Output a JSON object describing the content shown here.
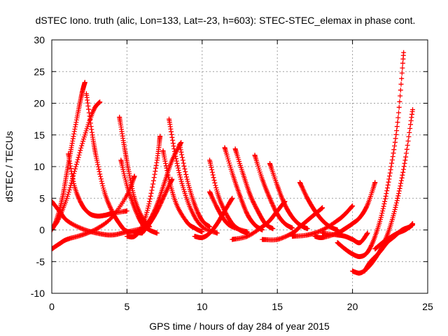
{
  "chart_data": {
    "type": "scatter",
    "title": "dSTEC Iono. truth (alic, Lon=133, Lat=-23, h=603): STEC-STEC_elemax in phase cont.",
    "xlabel": "GPS time / hours of day 284 of year 2015",
    "ylabel": "dSTEC  / TECUs",
    "xlim": [
      0,
      25
    ],
    "ylim": [
      -10,
      30
    ],
    "xticks": [
      0,
      5,
      10,
      15,
      20,
      25
    ],
    "yticks": [
      -10,
      -5,
      0,
      5,
      10,
      15,
      20,
      25,
      30
    ],
    "grid": true,
    "legend": "none",
    "marker": "plus",
    "color": "#ff0000",
    "series": [
      {
        "x": [
          0.0,
          0.3,
          0.7,
          1.0,
          1.3,
          1.7,
          2.0,
          2.2
        ],
        "y": [
          0.0,
          1.5,
          5.0,
          9.0,
          13.0,
          18.0,
          21.5,
          23.3
        ]
      },
      {
        "x": [
          0.0,
          0.4,
          1.0,
          1.6,
          2.2,
          2.8,
          3.2
        ],
        "y": [
          0.3,
          1.5,
          5.0,
          10.0,
          15.0,
          19.0,
          20.2
        ]
      },
      {
        "x": [
          0.0,
          0.5,
          1.0,
          2.0,
          3.0,
          4.0,
          5.0,
          6.0
        ],
        "y": [
          4.5,
          3.0,
          1.5,
          0.2,
          -0.5,
          -0.8,
          -0.3,
          0.2
        ]
      },
      {
        "x": [
          0.0,
          0.5,
          1.0,
          2.0,
          3.0,
          4.0,
          5.0,
          5.5
        ],
        "y": [
          -3.0,
          -2.2,
          -1.5,
          -0.8,
          0.2,
          2.0,
          5.5,
          8.5
        ]
      },
      {
        "x": [
          1.1,
          1.5,
          2.0,
          2.5,
          3.0,
          3.5,
          4.0,
          5.0
        ],
        "y": [
          12.0,
          7.0,
          4.0,
          2.6,
          2.2,
          2.3,
          2.6,
          3.0
        ]
      },
      {
        "x": [
          2.3,
          2.7,
          3.0,
          3.5,
          4.0,
          4.5,
          5.0,
          6.0
        ],
        "y": [
          21.5,
          15.0,
          11.0,
          6.0,
          3.0,
          1.0,
          -0.2,
          -0.5
        ]
      },
      {
        "x": [
          4.5,
          4.8,
          5.1,
          5.5,
          6.0,
          6.5
        ],
        "y": [
          17.8,
          13.5,
          9.5,
          5.0,
          2.0,
          0.5
        ]
      },
      {
        "x": [
          4.6,
          5.0,
          5.5,
          6.0,
          6.5,
          7.0
        ],
        "y": [
          11.0,
          7.0,
          3.5,
          1.0,
          0.0,
          -0.5
        ]
      },
      {
        "x": [
          5.0,
          5.5,
          6.0,
          6.5,
          7.0,
          7.2
        ],
        "y": [
          -1.0,
          -1.0,
          0.5,
          4.5,
          11.0,
          14.8
        ]
      },
      {
        "x": [
          5.5,
          6.0,
          6.5,
          7.0,
          7.5,
          8.0,
          8.6
        ],
        "y": [
          -0.5,
          0.0,
          1.5,
          4.0,
          7.5,
          11.0,
          13.8
        ]
      },
      {
        "x": [
          7.4,
          7.8,
          8.3,
          9.0,
          9.5,
          10.0
        ],
        "y": [
          12.5,
          8.0,
          4.0,
          1.2,
          0.3,
          -0.3
        ]
      },
      {
        "x": [
          7.8,
          8.2,
          8.7,
          9.3,
          10.0,
          11.0
        ],
        "y": [
          17.5,
          12.0,
          7.0,
          3.0,
          0.5,
          -0.5
        ]
      },
      {
        "x": [
          8.5,
          9.0,
          9.5,
          10.0,
          10.5
        ],
        "y": [
          13.5,
          8.0,
          4.0,
          1.5,
          0.5
        ]
      },
      {
        "x": [
          6.0,
          6.5,
          7.0,
          7.5,
          8.0
        ],
        "y": [
          -0.5,
          1.0,
          3.0,
          5.5,
          8.0
        ]
      },
      {
        "x": [
          9.5,
          10.0,
          10.5,
          11.0,
          11.5,
          12.0
        ],
        "y": [
          -1.0,
          -1.2,
          -0.5,
          1.0,
          3.0,
          5.0
        ]
      },
      {
        "x": [
          10.5,
          11.0,
          11.5,
          12.0,
          12.5,
          13.0
        ],
        "y": [
          11.0,
          6.0,
          3.0,
          1.0,
          0.0,
          -0.5
        ]
      },
      {
        "x": [
          10.5,
          11.0,
          11.5,
          12.0,
          13.0
        ],
        "y": [
          6.0,
          3.5,
          1.5,
          0.5,
          -0.3
        ]
      },
      {
        "x": [
          11.5,
          12.0,
          12.5,
          13.0,
          13.5,
          14.0
        ],
        "y": [
          13.0,
          9.0,
          5.5,
          2.5,
          0.8,
          0.0
        ]
      },
      {
        "x": [
          12.2,
          12.7,
          13.2,
          13.7,
          14.2,
          14.7
        ],
        "y": [
          12.8,
          9.0,
          5.5,
          3.0,
          1.0,
          0.2
        ]
      },
      {
        "x": [
          12.0,
          13.0,
          14.0,
          14.5,
          15.0,
          15.5
        ],
        "y": [
          -1.5,
          -1.0,
          0.5,
          1.5,
          3.0,
          4.5
        ]
      },
      {
        "x": [
          13.5,
          14.0,
          14.5,
          15.0,
          15.5,
          16.0
        ],
        "y": [
          11.8,
          8.0,
          5.0,
          2.5,
          1.0,
          0.3
        ]
      },
      {
        "x": [
          14.5,
          15.0,
          15.5,
          16.0,
          16.5,
          17.0
        ],
        "y": [
          10.5,
          7.0,
          4.0,
          2.0,
          0.8,
          0.2
        ]
      },
      {
        "x": [
          14.0,
          15.0,
          16.0,
          16.5,
          17.0,
          17.5,
          18.0
        ],
        "y": [
          -1.5,
          -1.5,
          -0.5,
          0.5,
          1.5,
          2.5,
          3.5
        ]
      },
      {
        "x": [
          16.5,
          17.0,
          17.5,
          18.0,
          18.5,
          19.0
        ],
        "y": [
          7.5,
          5.0,
          3.0,
          1.5,
          0.5,
          0.0
        ]
      },
      {
        "x": [
          16.0,
          17.0,
          18.0,
          19.0,
          19.5,
          20.0
        ],
        "y": [
          -1.0,
          -0.8,
          0.0,
          1.5,
          2.5,
          3.8
        ]
      },
      {
        "x": [
          17.5,
          18.0,
          19.0,
          19.5,
          20.0,
          20.5,
          21.0,
          21.5
        ],
        "y": [
          -1.0,
          -1.2,
          -0.5,
          0.2,
          1.0,
          2.0,
          4.0,
          7.5
        ]
      },
      {
        "x": [
          18.0,
          19.0,
          19.5,
          20.0,
          20.5,
          21.0
        ],
        "y": [
          -0.5,
          -0.8,
          -1.0,
          -1.5,
          -2.0,
          -0.5
        ]
      },
      {
        "x": [
          19.0,
          19.5,
          20.0,
          20.5,
          21.0,
          21.5,
          22.0,
          22.5,
          23.0,
          23.4
        ],
        "y": [
          -2.0,
          -3.0,
          -3.8,
          -4.2,
          -3.5,
          -1.0,
          3.0,
          9.0,
          17.0,
          28.0
        ]
      },
      {
        "x": [
          20.0,
          20.5,
          21.0,
          21.5,
          22.0,
          22.5,
          23.0,
          23.5,
          24.0
        ],
        "y": [
          -6.5,
          -6.8,
          -6.0,
          -4.5,
          -2.5,
          0.5,
          5.0,
          11.0,
          19.0
        ]
      },
      {
        "x": [
          20.8,
          21.2,
          21.8,
          22.3,
          22.8,
          23.3,
          23.8,
          24.0
        ],
        "y": [
          -6.5,
          -5.0,
          -3.5,
          -2.0,
          -1.0,
          0.0,
          0.5,
          1.0
        ]
      },
      {
        "x": [
          21.5,
          22.0,
          22.5,
          23.0,
          23.5,
          24.0
        ],
        "y": [
          -3.0,
          -2.0,
          -1.2,
          -0.5,
          0.0,
          0.8
        ]
      }
    ]
  }
}
